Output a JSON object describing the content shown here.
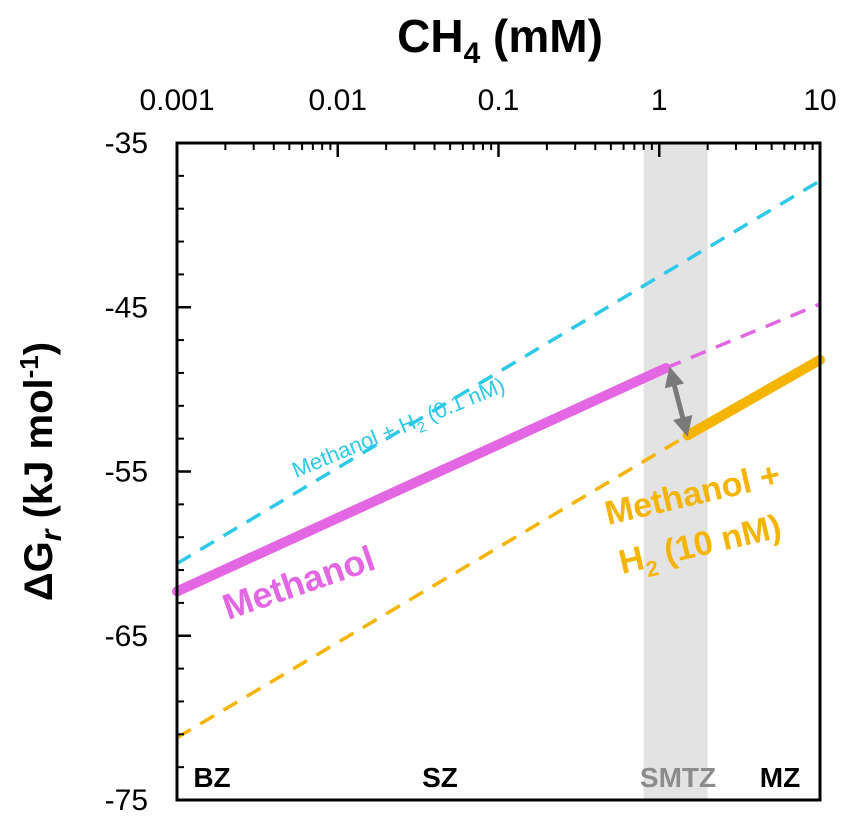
{
  "chart_data": {
    "type": "line",
    "title": "",
    "xlabel": {
      "text": "CH",
      "sub": "4",
      "tail": " (mM)"
    },
    "ylabel": {
      "pre": "ΔG",
      "italic": "r",
      "mid": " (kJ mol",
      "sup": "-1",
      "tail": ")"
    },
    "x_scale": "log",
    "xlim": [
      0.001,
      10
    ],
    "ylim": [
      -75,
      -35
    ],
    "x_ticks": [
      0.001,
      0.01,
      0.1,
      1,
      10
    ],
    "x_tick_labels": [
      "0.001",
      "0.01",
      "0.1",
      "1",
      "10"
    ],
    "y_ticks": [
      -35,
      -45,
      -55,
      -65,
      -75
    ],
    "y_tick_labels": [
      "-35",
      "-45",
      "-55",
      "-65",
      "-75"
    ],
    "smtz_band": {
      "x_range": [
        0.8,
        2.0
      ],
      "color": "#e3e3e3"
    },
    "zones": [
      {
        "label": "BZ",
        "color": "#000000"
      },
      {
        "label": "SZ",
        "color": "#000000"
      },
      {
        "label": "SMTZ",
        "color": "#8c8c8c"
      },
      {
        "label": "MZ",
        "color": "#000000"
      }
    ],
    "series": [
      {
        "name": "Methanol + H2 (0.1 nM)",
        "label_pre": "Methanol + H",
        "label_sub": "2",
        "label_tail": " (0.1 nM)",
        "color": "#2ec8e8",
        "style": "dashed",
        "x": [
          0.001,
          10
        ],
        "y": [
          -60.6,
          -37.3
        ]
      },
      {
        "name": "Methanol",
        "label_pre": "Methanol",
        "color": "#e366e3",
        "style": "solid",
        "x": [
          0.001,
          1.1
        ],
        "y": [
          -62.3,
          -48.7
        ]
      },
      {
        "name": "Methanol (extrapolated)",
        "color": "#e366e3",
        "style": "dashed",
        "x": [
          1.1,
          10
        ],
        "y": [
          -48.7,
          -44.8
        ]
      },
      {
        "name": "Methanol + H2 (10 nM)",
        "label_line1": "Methanol +",
        "label_pre": "H",
        "label_sub": "2",
        "label_tail": " (10 nM)",
        "color": "#f5b400",
        "style": "solid",
        "x": [
          1.5,
          10
        ],
        "y": [
          -52.8,
          -48.2
        ]
      },
      {
        "name": "Methanol + H2 (10 nM, extrapolated)",
        "color": "#f5b400",
        "style": "dashed",
        "x": [
          0.001,
          1.5
        ],
        "y": [
          -71.2,
          -52.8
        ]
      }
    ],
    "annotations": [
      {
        "type": "double-arrow",
        "x": [
          1.2,
          1.45
        ],
        "y": [
          -49.2,
          -52.3
        ],
        "color": "#7a7a7a"
      }
    ]
  }
}
